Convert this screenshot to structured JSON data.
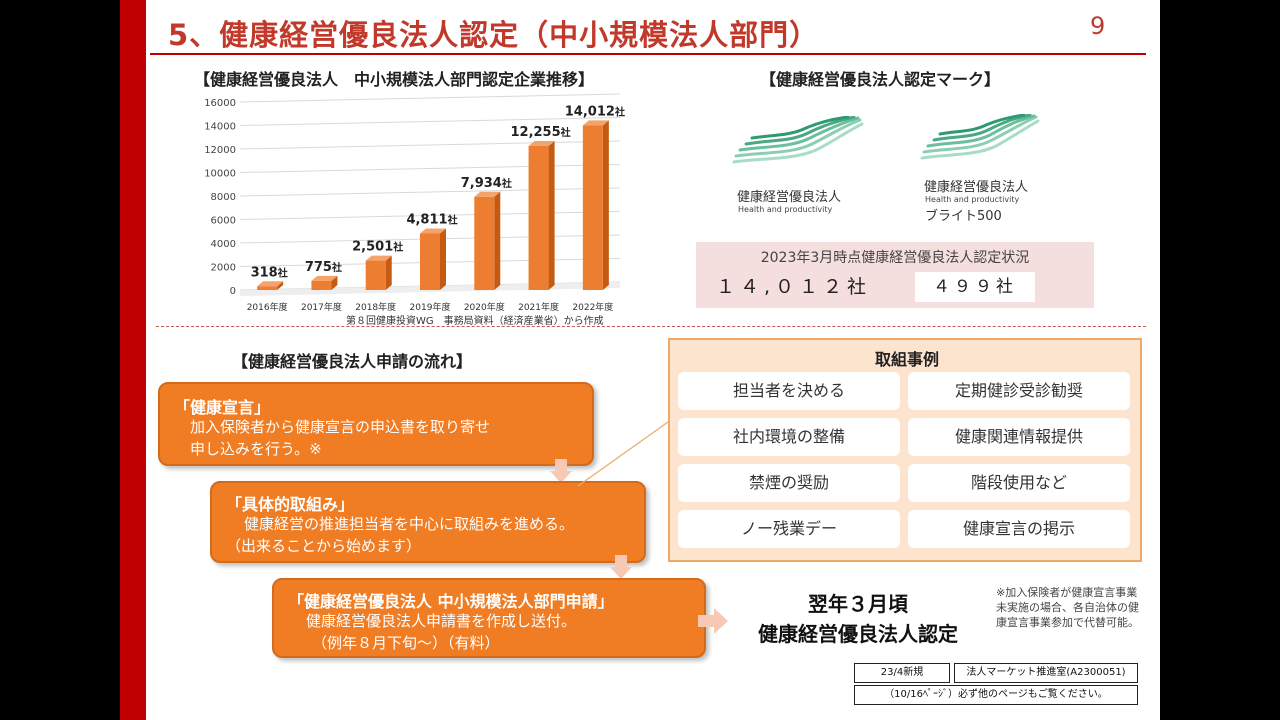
{
  "slide": {
    "title": "5、健康経営優良法人認定（中小規模法人部門）",
    "page_number": "9",
    "accent_color": "#c00000",
    "orange_color": "#f07c24"
  },
  "chart_section": {
    "heading": "【健康経営優良法人　中小規模法人部門認定企業推移】",
    "source_note": "第８回健康投資WG　事務局資料（経済産業省）から作成"
  },
  "chart_data": {
    "type": "bar",
    "categories": [
      "2016年度",
      "2017年度",
      "2018年度",
      "2019年度",
      "2020年度",
      "2021年度",
      "2022年度"
    ],
    "values": [
      318,
      775,
      2501,
      4811,
      7934,
      12255,
      14012
    ],
    "value_labels": [
      "318",
      "775",
      "2,501",
      "4,811",
      "7,934",
      "12,255",
      "14,012"
    ],
    "unit_suffix": "社",
    "yticks": [
      "0",
      "2000",
      "4000",
      "6000",
      "8000",
      "10000",
      "12000",
      "14000",
      "16000"
    ],
    "ylim": [
      0,
      16000
    ],
    "bar_color": "#ed7d31",
    "grid": true
  },
  "marks_section": {
    "heading": "【健康経営優良法人認定マーク】",
    "mark1": {
      "name": "健康経営優良法人",
      "en": "Health and productivity",
      "icon": "wave-logo-icon"
    },
    "mark2": {
      "name": "健康経営優良法人",
      "en": "Health and productivity",
      "brand": "ブライト500",
      "icon": "wave-logo-icon"
    },
    "status": {
      "caption": "2023年3月時点健康経営優良法人認定状況",
      "total": "１４,０１２社",
      "bright500": "４９９社"
    }
  },
  "flow_section": {
    "heading": "【健康経営優良法人申請の流れ】",
    "step1": {
      "title": "「健康宣言」",
      "line1": "加入保険者から健康宣言の申込書を取り寄せ",
      "line2": "申し込みを行う。※"
    },
    "step2": {
      "title": "「具体的取組み」",
      "line1": "健康経営の推進担当者を中心に取組みを進める。",
      "line2": "（出来ることから始めます）"
    },
    "step3": {
      "title": "「健康経営優良法人 中小規模法人部門申請」",
      "line1": "健康経営優良法人申請書を作成し送付。",
      "line2": "（例年８月下旬～）（有料）"
    },
    "result_line1": "翌年３月頃",
    "result_line2": "健康経営優良法人認定",
    "footnote": "※加入保険者が健康宣言事業未実施の場合、各自治体の健康宣言事業参加で代替可能。"
  },
  "examples": {
    "title": "取組事例",
    "items": [
      "担当者を決める",
      "定期健診受診勧奨",
      "社内環境の整備",
      "健康関連情報提供",
      "禁煙の奨励",
      "階段使用など",
      "ノー残業デー",
      "健康宣言の掲示"
    ]
  },
  "footer": {
    "new_tag": "23/4新規",
    "office_tag": "法人マーケット推進室(A2300051)",
    "page_ref": "（10/16ﾍﾟｰｼﾞ）必ず他のページもご覧ください。"
  }
}
